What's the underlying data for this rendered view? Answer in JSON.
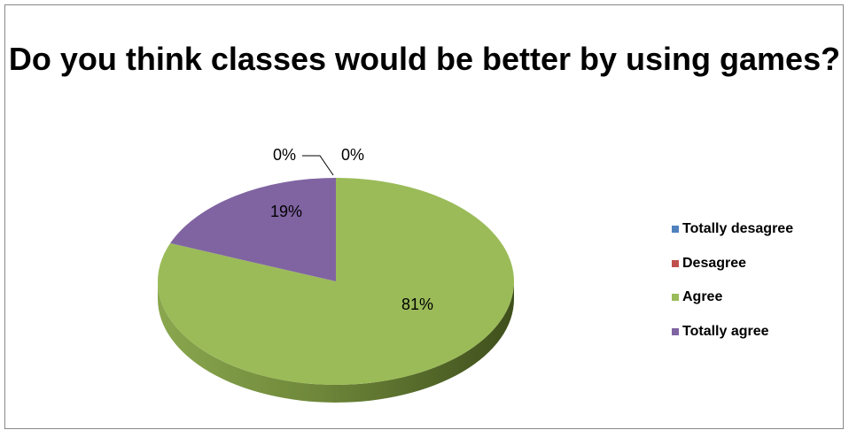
{
  "chart_data": {
    "type": "pie",
    "title": "Do you think classes would be better by using games?",
    "categories": [
      "Totally desagree",
      "Desagree",
      "Agree",
      "Totally agree"
    ],
    "values": [
      0,
      0,
      81,
      19
    ],
    "labels": [
      "0%",
      "0%",
      "81%",
      "19%"
    ],
    "colors": [
      "#4F81BD",
      "#C0504D",
      "#9BBB59",
      "#8064A2"
    ],
    "legend_position": "right",
    "style": "3d"
  }
}
